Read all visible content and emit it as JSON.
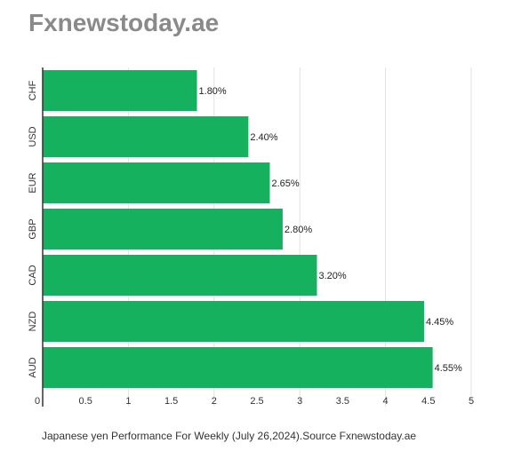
{
  "header": {
    "site_title": "Fxnewstoday.ae"
  },
  "chart_data": {
    "type": "bar",
    "orientation": "horizontal",
    "categories": [
      "CHF",
      "USD",
      "EUR",
      "GBP",
      "CAD",
      "NZD",
      "AUD"
    ],
    "values": [
      1.8,
      2.4,
      2.65,
      2.8,
      3.2,
      4.45,
      4.55
    ],
    "data_labels": [
      "1.80%",
      "2.40%",
      "2.65%",
      "2.80%",
      "3.20%",
      "4.45%",
      "4.55%"
    ],
    "x_ticks": [
      "0",
      "0.5",
      "1",
      "1.5",
      "2",
      "2.5",
      "3",
      "3.5",
      "4",
      "4.5",
      "5"
    ],
    "xlim": [
      0,
      5
    ],
    "grid": true,
    "bar_color": "#16b15e",
    "caption": "Japanese yen Performance For Weekly (July 26,2024).Source Fxnewstoday.ae"
  }
}
